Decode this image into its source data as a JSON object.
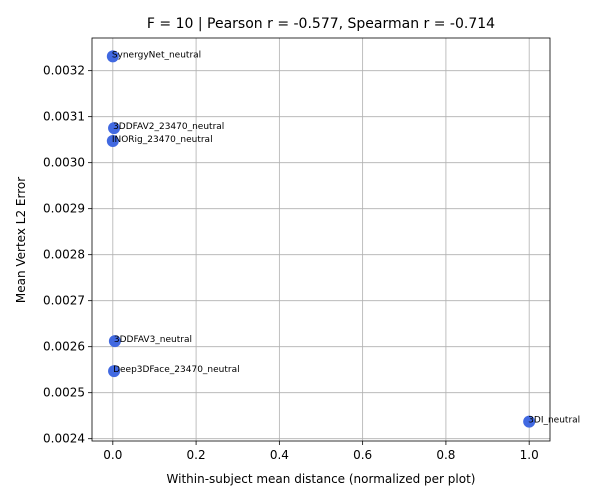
{
  "chart_data": {
    "type": "scatter",
    "title": "F = 10 | Pearson r = -0.577, Spearman r = -0.714",
    "xlabel": "Within-subject mean distance (normalized per plot)",
    "ylabel": "Mean Vertex L2 Error",
    "xlim": [
      -0.05,
      1.05
    ],
    "ylim": [
      0.002395,
      0.003271
    ],
    "xticks": [
      0.0,
      0.2,
      0.4,
      0.6,
      0.8,
      1.0
    ],
    "xtick_labels": [
      "0.0",
      "0.2",
      "0.4",
      "0.6",
      "0.8",
      "1.0"
    ],
    "yticks": [
      0.0024,
      0.0025,
      0.0026,
      0.0027,
      0.0028,
      0.0029,
      0.003,
      0.0031,
      0.0032
    ],
    "ytick_labels": [
      "0.0024",
      "0.0025",
      "0.0026",
      "0.0027",
      "0.0028",
      "0.0029",
      "0.0030",
      "0.0031",
      "0.0032"
    ],
    "grid": true,
    "marker_color": "#4169e1",
    "points": [
      {
        "label": "SynergyNet_neutral",
        "x": 0.0,
        "y": 0.003231
      },
      {
        "label": "3DDFAV2_23470_neutral",
        "x": 0.003,
        "y": 0.003075
      },
      {
        "label": "INORig_23470_neutral",
        "x": 0.0,
        "y": 0.003047
      },
      {
        "label": "3DDFAV3_neutral",
        "x": 0.005,
        "y": 0.002612
      },
      {
        "label": "Deep3DFace_23470_neutral",
        "x": 0.003,
        "y": 0.002547
      },
      {
        "label": "3DI_neutral",
        "x": 1.0,
        "y": 0.002437
      }
    ]
  }
}
